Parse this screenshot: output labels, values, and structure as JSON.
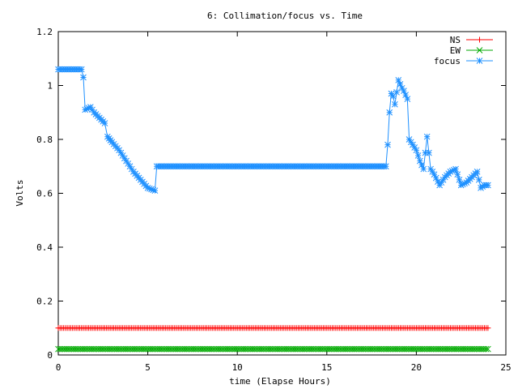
{
  "chart_data": {
    "type": "line",
    "title": "6: Collimation/focus vs. Time",
    "xlabel": "time (Elapse Hours)",
    "ylabel": "Volts",
    "xlim": [
      0,
      25
    ],
    "ylim": [
      0,
      1.2
    ],
    "xticks": [
      0,
      5,
      10,
      15,
      20,
      25
    ],
    "yticks": [
      0,
      0.2,
      0.4,
      0.6,
      0.8,
      1,
      1.2
    ],
    "xtick_labels": [
      "0",
      "5",
      "10",
      "15",
      "20",
      "25"
    ],
    "ytick_labels": [
      "0",
      "0.2",
      "0.4",
      "0.6",
      "0.8",
      "1",
      "1.2"
    ],
    "grid": false,
    "legend_position": "top-right",
    "series": [
      {
        "name": "NS",
        "color": "#ff0000",
        "marker": "plus",
        "x": [
          0,
          24
        ],
        "y": [
          0.1,
          0.1
        ]
      },
      {
        "name": "EW",
        "color": "#00aa00",
        "marker": "cross",
        "x": [
          0,
          24
        ],
        "y": [
          0.022,
          0.022
        ]
      },
      {
        "name": "focus",
        "color": "#1e90ff",
        "marker": "star",
        "x": [
          0,
          1.3,
          1.4,
          1.5,
          1.8,
          2.0,
          2.3,
          2.6,
          2.75,
          3.0,
          3.4,
          3.8,
          4.2,
          4.6,
          5.0,
          5.4,
          5.5,
          18.3,
          18.4,
          18.5,
          18.6,
          18.7,
          18.8,
          19.0,
          19.2,
          19.3,
          19.5,
          19.6,
          19.8,
          20.0,
          20.2,
          20.4,
          20.6,
          20.8,
          21.0,
          21.3,
          21.6,
          21.9,
          22.2,
          22.5,
          22.8,
          23.1,
          23.4,
          23.6,
          23.8,
          24.0
        ],
        "y": [
          1.06,
          1.06,
          1.03,
          0.91,
          0.92,
          0.9,
          0.88,
          0.86,
          0.81,
          0.79,
          0.76,
          0.72,
          0.68,
          0.65,
          0.62,
          0.61,
          0.7,
          0.7,
          0.78,
          0.9,
          0.97,
          0.96,
          0.93,
          1.02,
          0.99,
          0.98,
          0.95,
          0.8,
          0.78,
          0.76,
          0.72,
          0.69,
          0.81,
          0.69,
          0.67,
          0.63,
          0.66,
          0.68,
          0.69,
          0.63,
          0.64,
          0.66,
          0.68,
          0.62,
          0.63,
          0.63
        ]
      }
    ]
  }
}
